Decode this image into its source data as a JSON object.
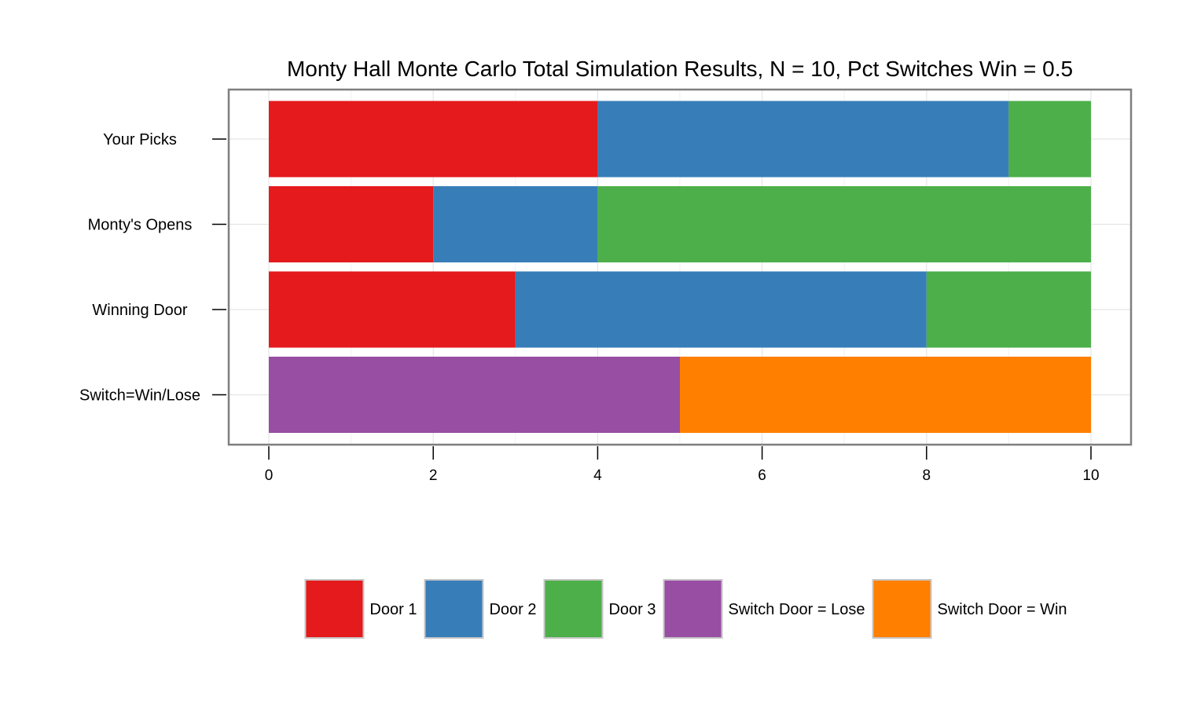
{
  "chart_data": {
    "type": "bar",
    "orientation": "horizontal",
    "stacked": true,
    "title": "Monty Hall Monte Carlo Total Simulation Results, N = 10, Pct Switches Win = 0.5",
    "xlabel": "",
    "ylabel": "",
    "xlim": [
      0,
      10
    ],
    "x_ticks": [
      0,
      2,
      4,
      6,
      8,
      10
    ],
    "grid": true,
    "legend_position": "bottom",
    "categories": [
      "Your Picks",
      "Monty's Opens",
      "Winning Door",
      "Switch=Win/Lose"
    ],
    "series": [
      {
        "name": "Door 1",
        "color": "#E41A1C",
        "values": [
          4,
          2,
          3,
          0
        ]
      },
      {
        "name": "Door 2",
        "color": "#377EB8",
        "values": [
          5,
          2,
          5,
          0
        ]
      },
      {
        "name": "Door 3",
        "color": "#4DAF4A",
        "values": [
          1,
          6,
          2,
          0
        ]
      },
      {
        "name": "Switch Door = Lose",
        "color": "#984EA3",
        "values": [
          0,
          0,
          0,
          5
        ]
      },
      {
        "name": "Switch Door = Win",
        "color": "#FF7F00",
        "values": [
          0,
          0,
          0,
          5
        ]
      }
    ]
  }
}
